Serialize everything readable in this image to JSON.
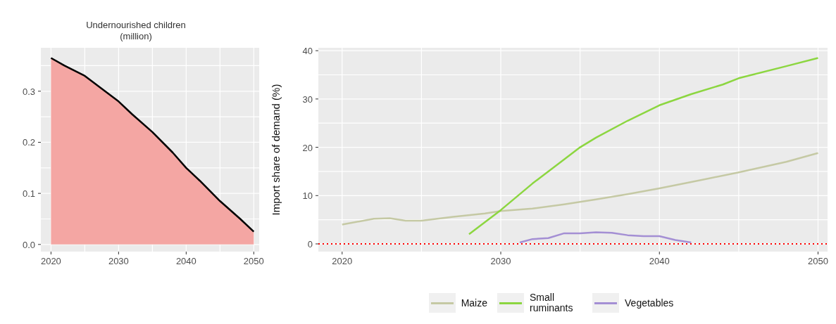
{
  "chart_data": [
    {
      "type": "area",
      "title": "Undernourished children (million)",
      "xlim": [
        2018.5,
        2050.8
      ],
      "xticks": [
        2020,
        2030,
        2040,
        2050,
        {
          "value": 2025,
          "label": null
        },
        {
          "value": 2035,
          "label": null
        },
        {
          "value": 2045,
          "label": null
        }
      ],
      "ylim": [
        -0.014,
        0.385
      ],
      "yticks": [
        {
          "value": 0,
          "label": "0.0"
        },
        0.1,
        0.2,
        0.3,
        {
          "value": 0.05,
          "label": null
        },
        {
          "value": 0.15,
          "label": null
        },
        {
          "value": 0.25,
          "label": null
        },
        {
          "value": 0.35,
          "label": null
        }
      ],
      "grid": true,
      "legend": false,
      "x": [
        2020,
        2022,
        2025,
        2028,
        2030,
        2032,
        2035,
        2038,
        2040,
        2042,
        2045,
        2048,
        2050
      ],
      "series": [
        {
          "type": "area",
          "color": "#f4a6a3",
          "values": [
            0.365,
            0.35,
            0.33,
            0.3,
            0.28,
            0.255,
            0.22,
            0.18,
            0.15,
            0.125,
            0.085,
            0.05,
            0.025
          ]
        }
      ]
    },
    {
      "type": "line",
      "ylabel": "Import share of demand (%)",
      "xlim": [
        2018.5,
        2050.6
      ],
      "xticks": [
        2020,
        2030,
        2040,
        2050,
        {
          "value": 2025,
          "label": null
        },
        {
          "value": 2035,
          "label": null
        },
        {
          "value": 2045,
          "label": null
        }
      ],
      "ylim": [
        -1.6,
        40.6
      ],
      "yticks": [
        0,
        10,
        20,
        30,
        40,
        {
          "value": 5,
          "label": null
        },
        {
          "value": 15,
          "label": null
        },
        {
          "value": 25,
          "label": null
        },
        {
          "value": 35,
          "label": null
        }
      ],
      "grid": true,
      "legend": "bottom",
      "ref_lines": [
        {
          "axis": "y",
          "value": 0,
          "color": "#ff0000",
          "line_style": "dotted"
        }
      ],
      "series": [
        {
          "name": "Maize",
          "color": "#c5c9a4",
          "x": [
            2020,
            2022,
            2023,
            2024,
            2025,
            2027,
            2029,
            2030,
            2032,
            2034,
            2036,
            2038,
            2040,
            2042,
            2045,
            2048,
            2050
          ],
          "values": [
            4,
            5.2,
            5.3,
            4.8,
            4.8,
            5.6,
            6.3,
            6.8,
            7.3,
            8.2,
            9.2,
            10.3,
            11.5,
            12.8,
            14.8,
            17,
            18.8
          ]
        },
        {
          "name": "Small ruminants",
          "color": "#8cd640",
          "x": [
            2028,
            2030,
            2032,
            2034,
            2035,
            2036,
            2038,
            2040,
            2042,
            2044,
            2045,
            2048,
            2050
          ],
          "values": [
            2,
            7,
            12.5,
            17.5,
            20,
            22,
            25.5,
            28.7,
            31,
            33,
            34.3,
            36.8,
            38.5
          ]
        },
        {
          "name": "Vegetables",
          "color": "#a48fd4",
          "x": [
            2031.2,
            2032,
            2033,
            2034,
            2035,
            2036,
            2037,
            2038,
            2039,
            2040,
            2041,
            2042
          ],
          "values": [
            0.3,
            1,
            1.2,
            2.2,
            2.2,
            2.4,
            2.3,
            1.8,
            1.6,
            1.6,
            0.8,
            0.3
          ]
        }
      ]
    }
  ]
}
